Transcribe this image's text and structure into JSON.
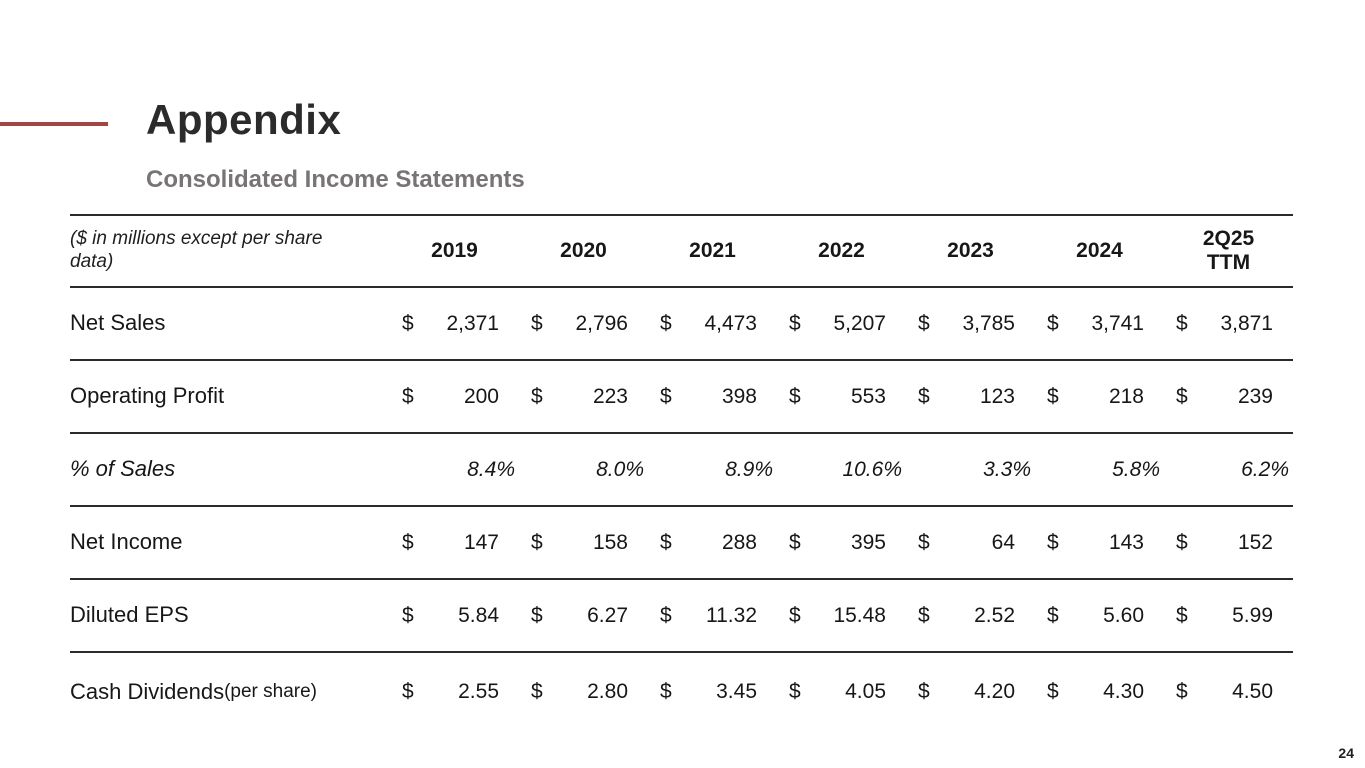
{
  "page": {
    "title": "Appendix",
    "subtitle": "Consolidated Income Statements",
    "page_number": "24",
    "accent_color": "#a54543"
  },
  "table": {
    "note": "($ in millions except per share data)",
    "currency_symbol": "$",
    "columns": [
      "2019",
      "2020",
      "2021",
      "2022",
      "2023",
      "2024",
      "2Q25\nTTM"
    ],
    "rows": [
      {
        "label": "Net Sales",
        "style": "money",
        "values": [
          "2,371",
          "2,796",
          "4,473",
          "5,207",
          "3,785",
          "3,741",
          "3,871"
        ]
      },
      {
        "label": "Operating Profit",
        "style": "money",
        "values": [
          "200",
          "223",
          "398",
          "553",
          "123",
          "218",
          "239"
        ]
      },
      {
        "label": "% of Sales",
        "style": "percent",
        "values": [
          "8.4%",
          "8.0%",
          "8.9%",
          "10.6%",
          "3.3%",
          "5.8%",
          "6.2%"
        ]
      },
      {
        "label": "Net Income",
        "style": "money",
        "values": [
          "147",
          "158",
          "288",
          "395",
          "64",
          "143",
          "152"
        ]
      },
      {
        "label": "Diluted EPS",
        "style": "money",
        "values": [
          "5.84",
          "6.27",
          "11.32",
          "15.48",
          "2.52",
          "5.60",
          "5.99"
        ]
      },
      {
        "label": "Cash Dividends ",
        "label_small": "(per share)",
        "style": "money",
        "values": [
          "2.55",
          "2.80",
          "3.45",
          "4.05",
          "4.20",
          "4.30",
          "4.50"
        ]
      }
    ]
  }
}
